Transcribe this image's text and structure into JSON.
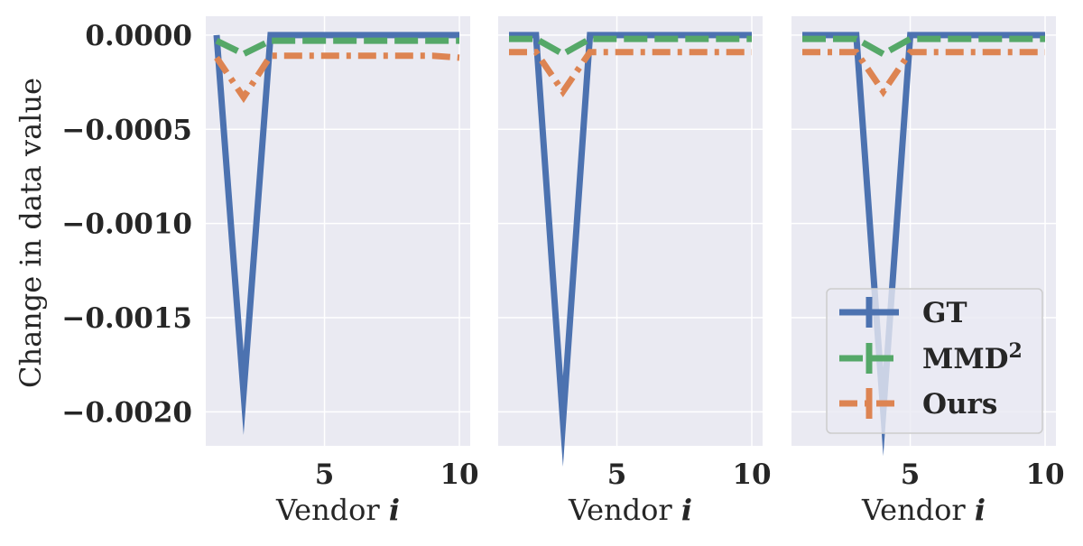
{
  "figure": {
    "ylabel": "Change in data value",
    "colors": {
      "background": "#EAEAF2",
      "grid": "#FFFFFF",
      "GT": "#4C72B0",
      "MMD": "#55A868",
      "Ours": "#DD8452"
    },
    "legend": {
      "location": "lower-right of third panel",
      "entries": [
        {
          "key": "GT",
          "label": "GT",
          "style": "solid"
        },
        {
          "key": "MMD",
          "label": "MMD",
          "sup": "2",
          "style": "dashed"
        },
        {
          "key": "Ours",
          "label": "Ours",
          "style": "dashdot"
        }
      ]
    }
  },
  "chart_data": [
    {
      "type": "line",
      "xlabel": "Vendor",
      "xlabel_var": "i",
      "ylabel": "Change in data value",
      "x": [
        1,
        2,
        3,
        4,
        5,
        6,
        7,
        8,
        9,
        10
      ],
      "xlim": [
        0.6,
        10.4
      ],
      "ylim": [
        -0.00218,
        0.0001
      ],
      "xticks": [
        5,
        10
      ],
      "yticks": [
        0.0,
        -0.0005,
        -0.001,
        -0.0015,
        -0.002
      ],
      "ytick_labels": [
        "0.0000",
        "−0.0005",
        "−0.0010",
        "−0.0015",
        "−0.0020"
      ],
      "grid": true,
      "series": [
        {
          "name": "GT",
          "values": [
            0.0,
            -0.0019,
            0.0,
            0.0,
            0.0,
            0.0,
            0.0,
            0.0,
            0.0,
            0.0
          ]
        },
        {
          "name": "MMD²",
          "values": [
            -3e-05,
            -0.0001,
            -3e-05,
            -3e-05,
            -3e-05,
            -3e-05,
            -3e-05,
            -3e-05,
            -3e-05,
            -3e-05
          ]
        },
        {
          "name": "Ours",
          "values": [
            -0.00012,
            -0.00033,
            -0.00011,
            -0.00011,
            -0.00011,
            -0.00011,
            -0.00011,
            -0.00011,
            -0.00011,
            -0.00012
          ]
        }
      ]
    },
    {
      "type": "line",
      "xlabel": "Vendor",
      "xlabel_var": "i",
      "x": [
        1,
        2,
        3,
        4,
        5,
        6,
        7,
        8,
        9,
        10
      ],
      "xlim": [
        0.6,
        10.4
      ],
      "ylim": [
        -0.00218,
        0.0001
      ],
      "xticks": [
        5,
        10
      ],
      "grid": true,
      "series": [
        {
          "name": "GT",
          "values": [
            0.0,
            0.0,
            -0.00205,
            0.0,
            0.0,
            0.0,
            0.0,
            0.0,
            0.0,
            0.0
          ]
        },
        {
          "name": "MMD²",
          "values": [
            -2e-05,
            -2e-05,
            -0.0001,
            -2e-05,
            -2e-05,
            -2e-05,
            -2e-05,
            -2e-05,
            -2e-05,
            -2e-05
          ]
        },
        {
          "name": "Ours",
          "values": [
            -9e-05,
            -9e-05,
            -0.0003,
            -9e-05,
            -9e-05,
            -9e-05,
            -9e-05,
            -9e-05,
            -9e-05,
            -9e-05
          ]
        }
      ]
    },
    {
      "type": "line",
      "xlabel": "Vendor",
      "xlabel_var": "i",
      "x": [
        1,
        2,
        3,
        4,
        5,
        6,
        7,
        8,
        9,
        10
      ],
      "xlim": [
        0.6,
        10.4
      ],
      "ylim": [
        -0.00218,
        0.0001
      ],
      "xticks": [
        5,
        10
      ],
      "grid": true,
      "series": [
        {
          "name": "GT",
          "values": [
            0.0,
            0.0,
            0.0,
            -0.002,
            0.0,
            0.0,
            0.0,
            0.0,
            0.0,
            0.0
          ]
        },
        {
          "name": "MMD²",
          "values": [
            -2e-05,
            -2e-05,
            -2e-05,
            -0.0001,
            -2e-05,
            -2e-05,
            -2e-05,
            -2e-05,
            -2e-05,
            -2e-05
          ]
        },
        {
          "name": "Ours",
          "values": [
            -9e-05,
            -9e-05,
            -9e-05,
            -0.0003,
            -9e-05,
            -9e-05,
            -9e-05,
            -9e-05,
            -9e-05,
            -9e-05
          ]
        }
      ]
    }
  ]
}
